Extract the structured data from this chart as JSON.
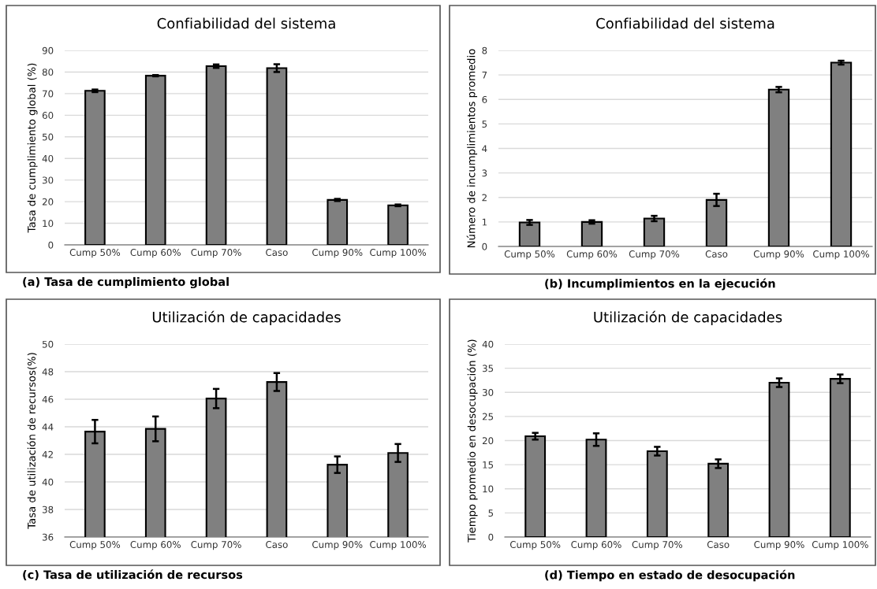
{
  "chart_data": [
    {
      "type": "bar",
      "title": "Confiabilidad del sistema",
      "ylabel": "Tasa de cumplimiento global (%)",
      "categories": [
        "Cump 50%",
        "Cump 60%",
        "Cump 70%",
        "Caso",
        "Cump 90%",
        "Cump 100%"
      ],
      "values": [
        71.3,
        78.3,
        82.7,
        81.8,
        20.8,
        18.3
      ],
      "errors": [
        0.6,
        0.3,
        0.8,
        1.8,
        0.5,
        0.4
      ],
      "color": "#808080",
      "ylim": [
        0,
        90
      ],
      "yticks": [
        0,
        10,
        20,
        30,
        40,
        50,
        60,
        70,
        80,
        90
      ],
      "grid": "y",
      "legend": false,
      "annotations": [
        "(a) Tasa de cumplimiento global"
      ]
    },
    {
      "type": "bar",
      "title": "Confiabilidad del sistema",
      "ylabel": "Número de incumplimientos promedio",
      "categories": [
        "Cump 50%",
        "Cump 60%",
        "Cump 70%",
        "Caso",
        "Cump 90%",
        "Cump 100%"
      ],
      "values": [
        0.98,
        1.0,
        1.14,
        1.9,
        6.4,
        7.5
      ],
      "errors": [
        0.1,
        0.07,
        0.11,
        0.25,
        0.11,
        0.08
      ],
      "color": "#808080",
      "ylim": [
        0,
        8
      ],
      "yticks": [
        0,
        1,
        2,
        3,
        4,
        5,
        6,
        7,
        8
      ],
      "grid": "y",
      "legend": false,
      "annotations": [
        "(b) Incumplimientos en la ejecución"
      ]
    },
    {
      "type": "bar",
      "title": "Utilización de capacidades",
      "ylabel": "Tasa de utilización de recursos(%)",
      "categories": [
        "Cump 50%",
        "Cump 60%",
        "Cump 70%",
        "Caso",
        "Cump 90%",
        "Cump 100%"
      ],
      "values": [
        43.65,
        43.85,
        46.05,
        47.25,
        41.25,
        42.1
      ],
      "errors": [
        0.85,
        0.9,
        0.7,
        0.65,
        0.6,
        0.65
      ],
      "color": "#808080",
      "ylim": [
        36,
        50
      ],
      "yticks": [
        36,
        38,
        40,
        42,
        44,
        46,
        48,
        50
      ],
      "grid": "y",
      "legend": false,
      "annotations": [
        "(c) Tasa de utilización de recursos"
      ]
    },
    {
      "type": "bar",
      "title": "Utilización de capacidades",
      "ylabel": "Tiempo promedio en desocupación (%)",
      "categories": [
        "Cump 50%",
        "Cump 60%",
        "Cump 70%",
        "Caso",
        "Cump 90%",
        "Cump 100%"
      ],
      "values": [
        20.9,
        20.2,
        17.8,
        15.2,
        32.0,
        32.8
      ],
      "errors": [
        0.7,
        1.3,
        0.9,
        0.9,
        0.9,
        0.9
      ],
      "color": "#808080",
      "ylim": [
        0,
        40
      ],
      "yticks": [
        0,
        5,
        10,
        15,
        20,
        25,
        30,
        35,
        40
      ],
      "grid": "y",
      "legend": false,
      "annotations": [
        "(d) Tiempo en estado de desocupación"
      ]
    }
  ]
}
